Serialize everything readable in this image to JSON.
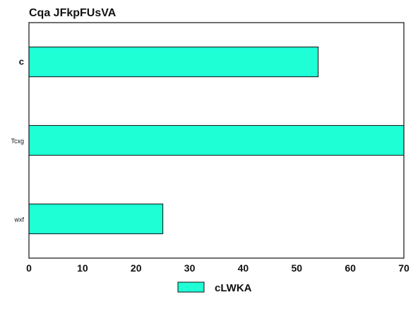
{
  "chart_data": {
    "type": "bar",
    "orientation": "horizontal",
    "title": "Cqa JFkpFUsVA",
    "categories": [
      "c",
      "Tcxg",
      "wxf"
    ],
    "series": [
      {
        "name": "cLWKA",
        "values": [
          54,
          70,
          25
        ],
        "color": "#1effd6"
      }
    ],
    "xlim": [
      0,
      70
    ],
    "xticks": [
      0,
      10,
      20,
      30,
      40,
      50,
      60,
      70
    ],
    "xlabel": "",
    "ylabel": "",
    "grid": false,
    "legend_position": "bottom-center"
  }
}
